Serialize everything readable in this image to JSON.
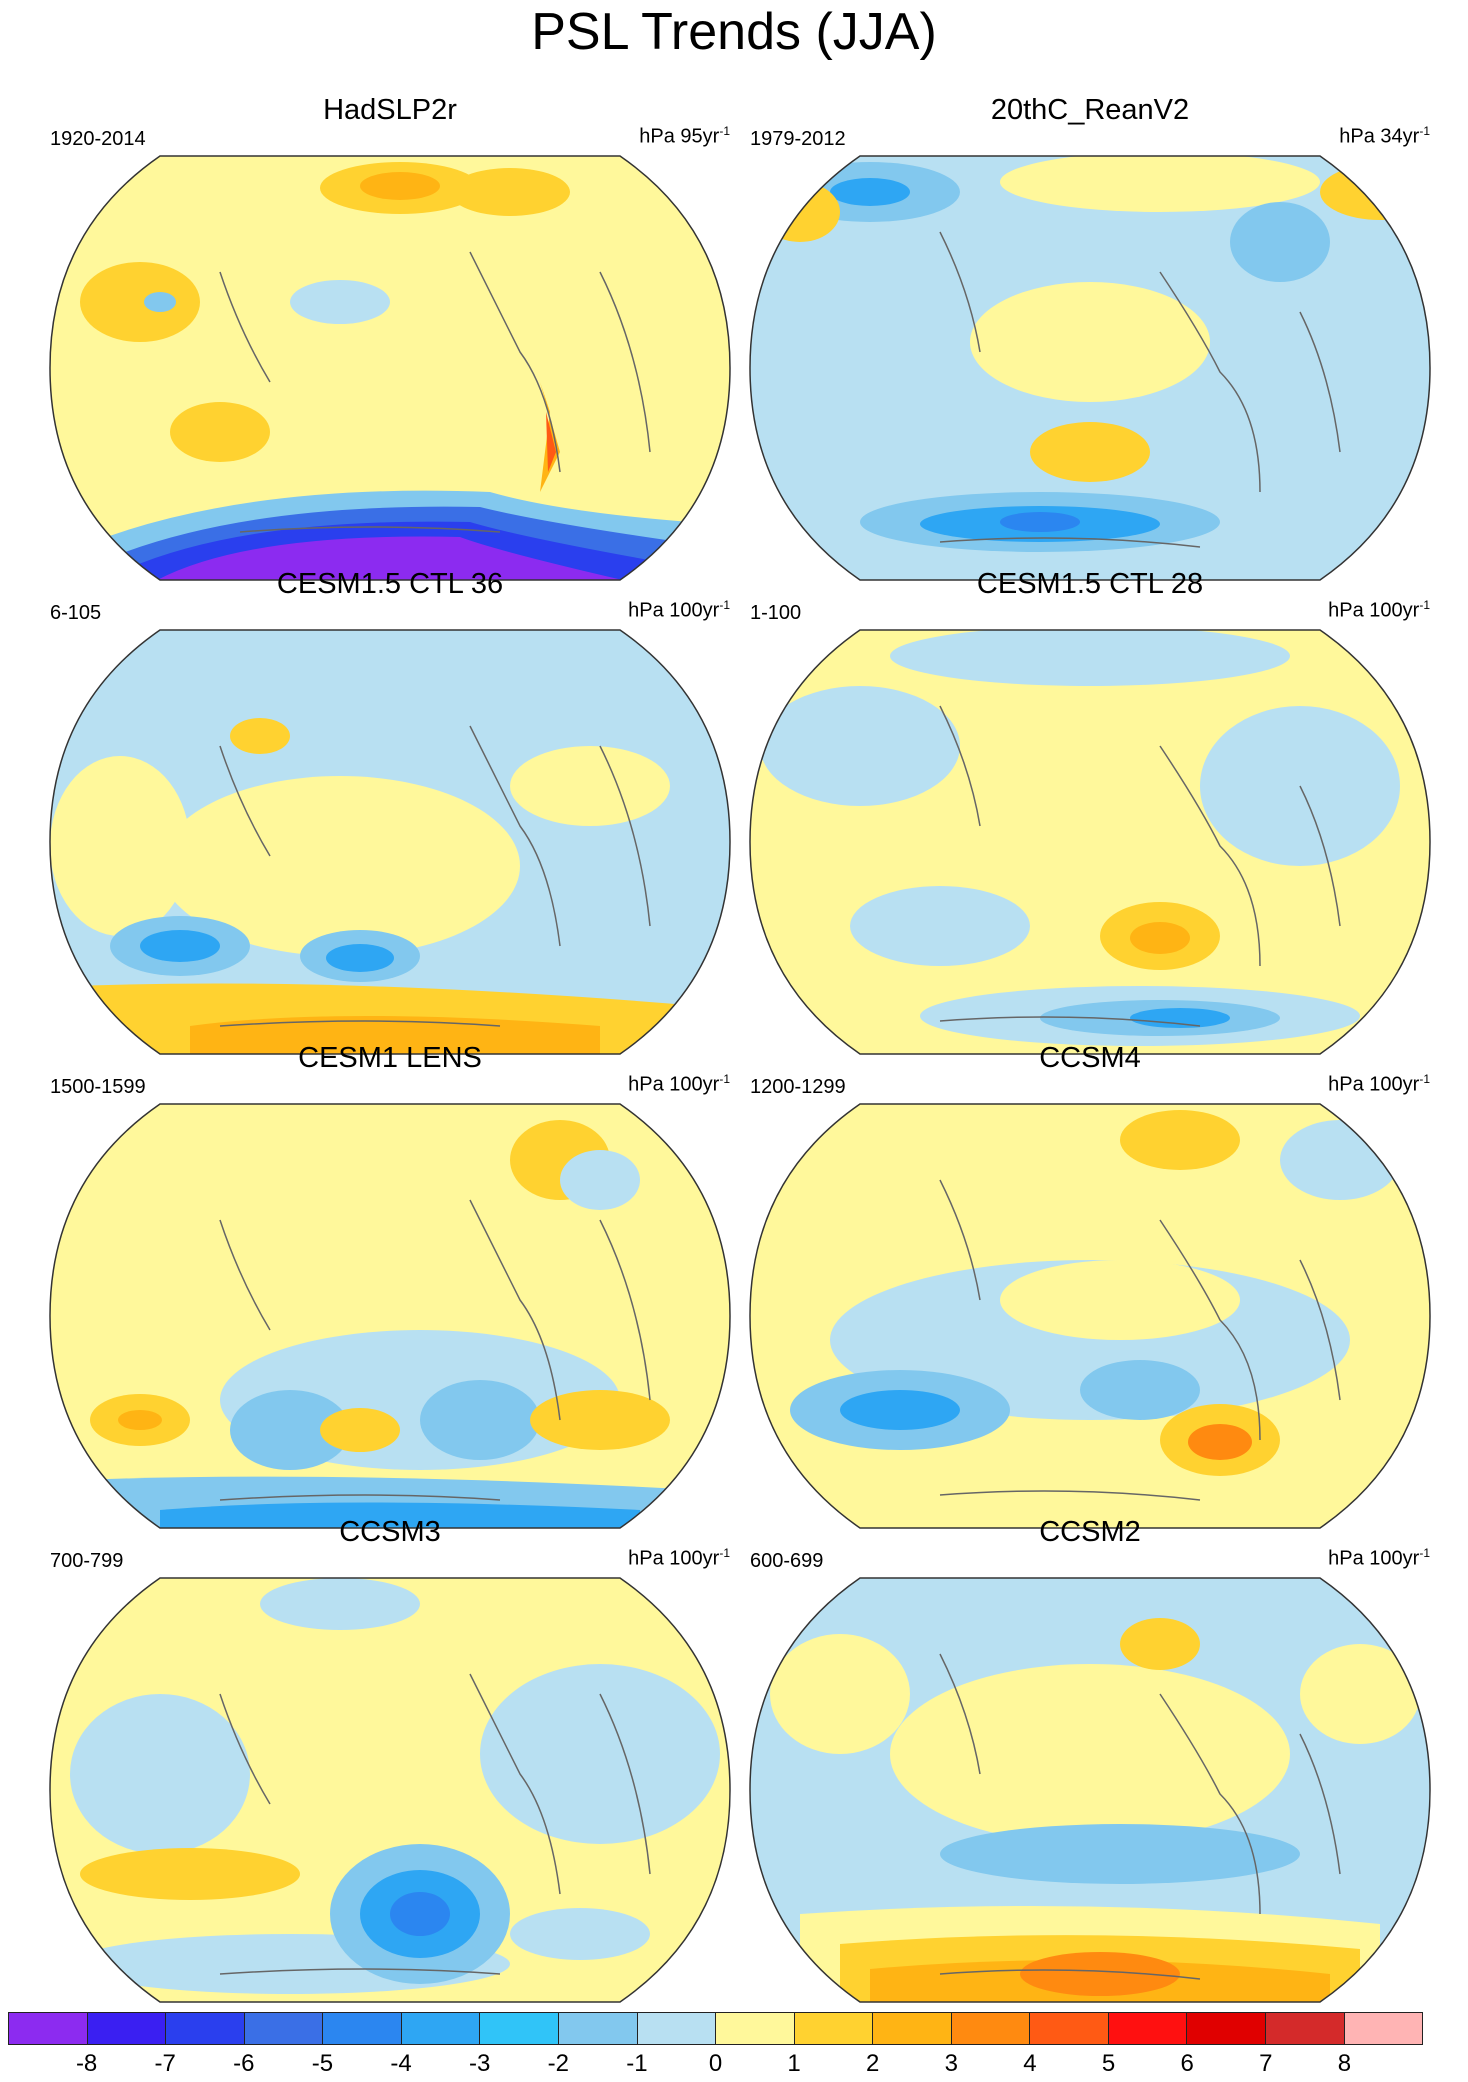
{
  "title": "PSL Trends (JJA)",
  "colors": {
    "ocean": "#fff89b",
    "land_line": "#666666",
    "outline": "#333333"
  },
  "chart_data": {
    "type": "contour-map",
    "variable": "PSL",
    "season": "JJA",
    "colorbar": {
      "ticks": [
        "-8",
        "-7",
        "-6",
        "-5",
        "-4",
        "-3",
        "-2",
        "-1",
        "0",
        "1",
        "2",
        "3",
        "4",
        "5",
        "6",
        "7",
        "8"
      ],
      "colors": [
        "#8c2bf0",
        "#3a1ff2",
        "#2a3fee",
        "#3a6fe6",
        "#2b86f0",
        "#2ea6f3",
        "#30c4f8",
        "#82c8ee",
        "#b8e0f2",
        "#fff89b",
        "#ffd230",
        "#ffb414",
        "#ff8a10",
        "#ff5a14",
        "#ff1010",
        "#e00000",
        "#d42a2a",
        "#ffb4b4"
      ]
    },
    "panels": [
      {
        "title": "HadSLP2r",
        "years": "1920-2014",
        "units": "hPa 95yr",
        "exp": "-1"
      },
      {
        "title": "20thC_ReanV2",
        "years": "1979-2012",
        "units": "hPa 34yr",
        "exp": "-1"
      },
      {
        "title": "CESM1.5 CTL 36",
        "years": "6-105",
        "units": "hPa 100yr",
        "exp": "-1"
      },
      {
        "title": "CESM1.5 CTL 28",
        "years": "1-100",
        "units": "hPa 100yr",
        "exp": "-1"
      },
      {
        "title": "CESM1 LENS",
        "years": "1500-1599",
        "units": "hPa 100yr",
        "exp": "-1"
      },
      {
        "title": "CCSM4",
        "years": "1200-1299",
        "units": "hPa 100yr",
        "exp": "-1"
      },
      {
        "title": "CCSM3",
        "years": "700-799",
        "units": "hPa 100yr",
        "exp": "-1"
      },
      {
        "title": "CCSM2",
        "years": "600-699",
        "units": "hPa 100yr",
        "exp": "-1"
      }
    ]
  }
}
